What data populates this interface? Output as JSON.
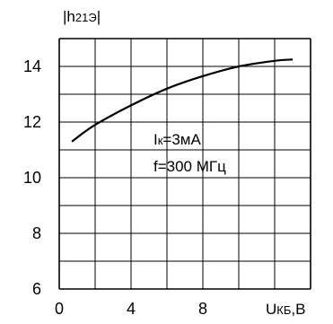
{
  "chart_data": {
    "type": "line",
    "ylabel": {
      "prefix": "|h",
      "sub": "21Э",
      "suffix": "|"
    },
    "xlabel": {
      "main": "U",
      "sub": "КБ",
      "suffix": ",В"
    },
    "xlim": [
      0,
      14
    ],
    "ylim": [
      6,
      15
    ],
    "x_ticks": [
      0,
      4,
      8
    ],
    "y_ticks": [
      6,
      8,
      10,
      12,
      14
    ],
    "grid": true,
    "annotations": [
      {
        "main": "I",
        "sub": "к",
        "suffix": "=3мА"
      },
      {
        "text": "f=300 МГц"
      }
    ],
    "series": [
      {
        "x": [
          0.7,
          2,
          4,
          6,
          8,
          10,
          12,
          13
        ],
        "values": [
          11.3,
          11.9,
          12.6,
          13.2,
          13.65,
          14.0,
          14.2,
          14.25
        ]
      }
    ]
  }
}
